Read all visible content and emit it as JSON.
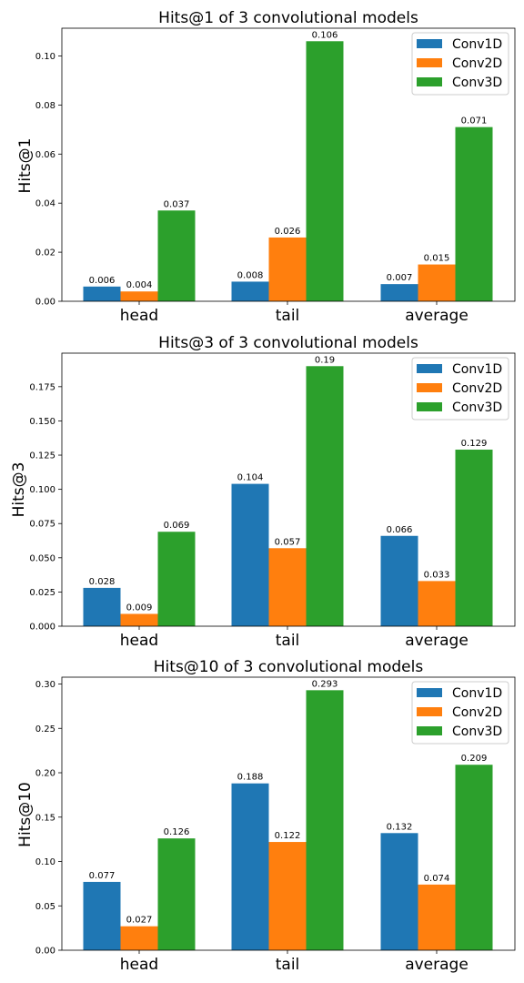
{
  "chart_data": [
    {
      "type": "bar",
      "title": "Hits@1 of 3 convolutional models",
      "ylabel": "Hits@1",
      "xlabel": "",
      "categories": [
        "head",
        "tail",
        "average"
      ],
      "series": [
        {
          "name": "Conv1D",
          "values": [
            0.006,
            0.008,
            0.007
          ],
          "labels": [
            "0.006",
            "0.008",
            "0.007"
          ]
        },
        {
          "name": "Conv2D",
          "values": [
            0.004,
            0.026,
            0.015
          ],
          "labels": [
            "0.004",
            "0.026",
            "0.015"
          ]
        },
        {
          "name": "Conv3D",
          "values": [
            0.037,
            0.106,
            0.071
          ],
          "labels": [
            "0.037",
            "0.106",
            "0.071"
          ]
        }
      ],
      "ylim": [
        0,
        0.1113
      ],
      "yticks": [
        0.0,
        0.02,
        0.04,
        0.06,
        0.08,
        0.1
      ],
      "ytick_labels": [
        "0.00",
        "0.02",
        "0.04",
        "0.06",
        "0.08",
        "0.10"
      ],
      "legend": "top-right",
      "grid": false
    },
    {
      "type": "bar",
      "title": "Hits@3 of 3 convolutional models",
      "ylabel": "Hits@3",
      "xlabel": "",
      "categories": [
        "head",
        "tail",
        "average"
      ],
      "series": [
        {
          "name": "Conv1D",
          "values": [
            0.028,
            0.104,
            0.066
          ],
          "labels": [
            "0.028",
            "0.104",
            "0.066"
          ]
        },
        {
          "name": "Conv2D",
          "values": [
            0.009,
            0.057,
            0.033
          ],
          "labels": [
            "0.009",
            "0.057",
            "0.033"
          ]
        },
        {
          "name": "Conv3D",
          "values": [
            0.069,
            0.19,
            0.129
          ],
          "labels": [
            "0.069",
            "0.19",
            "0.129"
          ]
        }
      ],
      "ylim": [
        0,
        0.1995
      ],
      "yticks": [
        0.0,
        0.025,
        0.05,
        0.075,
        0.1,
        0.125,
        0.15,
        0.175
      ],
      "ytick_labels": [
        "0.000",
        "0.025",
        "0.050",
        "0.075",
        "0.100",
        "0.125",
        "0.150",
        "0.175"
      ],
      "legend": "top-right",
      "grid": false
    },
    {
      "type": "bar",
      "title": "Hits@10 of 3 convolutional models",
      "ylabel": "Hits@10",
      "xlabel": "",
      "categories": [
        "head",
        "tail",
        "average"
      ],
      "series": [
        {
          "name": "Conv1D",
          "values": [
            0.077,
            0.188,
            0.132
          ],
          "labels": [
            "0.077",
            "0.188",
            "0.132"
          ]
        },
        {
          "name": "Conv2D",
          "values": [
            0.027,
            0.122,
            0.074
          ],
          "labels": [
            "0.027",
            "0.122",
            "0.074"
          ]
        },
        {
          "name": "Conv3D",
          "values": [
            0.126,
            0.293,
            0.209
          ],
          "labels": [
            "0.126",
            "0.293",
            "0.209"
          ]
        }
      ],
      "ylim": [
        0,
        0.3077
      ],
      "yticks": [
        0.0,
        0.05,
        0.1,
        0.15,
        0.2,
        0.25,
        0.3
      ],
      "ytick_labels": [
        "0.00",
        "0.05",
        "0.10",
        "0.15",
        "0.20",
        "0.25",
        "0.30"
      ],
      "legend": "top-right",
      "grid": false
    }
  ],
  "colors": {
    "Conv1D": "#1f77b4",
    "Conv2D": "#ff7f0e",
    "Conv3D": "#2ca02c"
  }
}
